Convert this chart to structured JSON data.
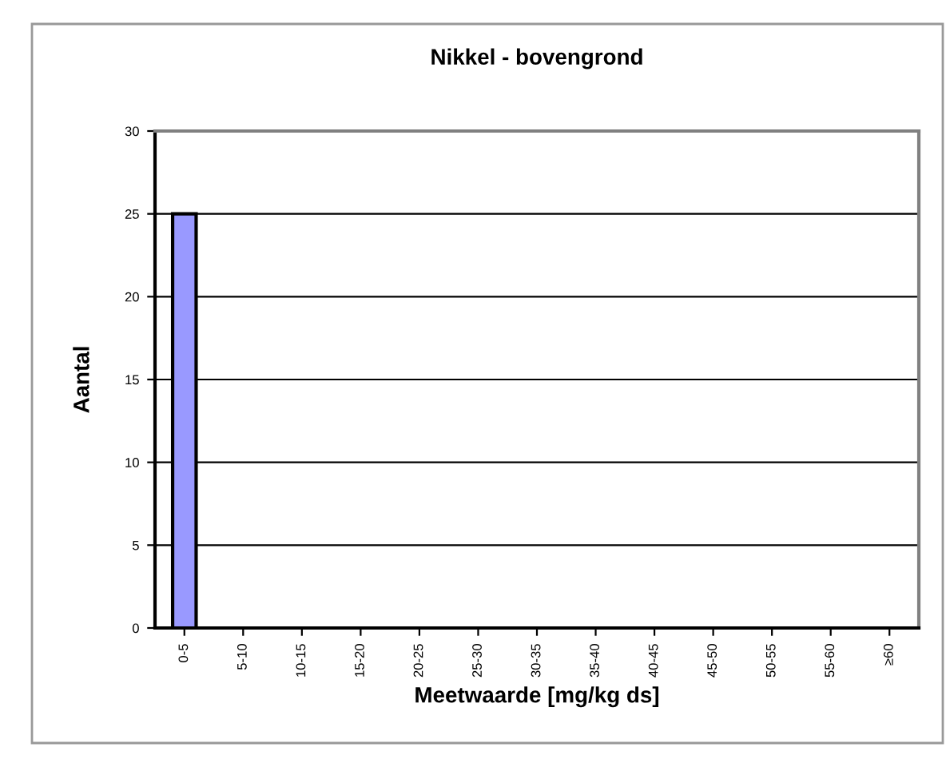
{
  "chart_data": {
    "type": "bar",
    "title": "Nikkel - bovengrond",
    "xlabel": "Meetwaarde [mg/kg ds]",
    "ylabel": "Aantal",
    "categories": [
      "0-5",
      "5-10",
      "10-15",
      "15-20",
      "20-25",
      "25-30",
      "30-35",
      "35-40",
      "40-45",
      "45-50",
      "50-55",
      "55-60",
      "≥60"
    ],
    "values": [
      25,
      0,
      0,
      0,
      0,
      0,
      0,
      0,
      0,
      0,
      0,
      0,
      0
    ],
    "color": "#9999ff",
    "ylim": [
      0,
      30
    ],
    "yticks": [
      0,
      5,
      10,
      15,
      20,
      25,
      30
    ],
    "grid": "y"
  }
}
